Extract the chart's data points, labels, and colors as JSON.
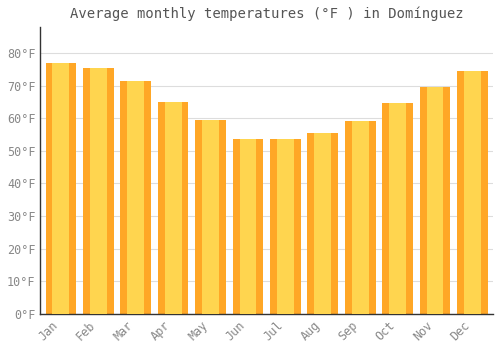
{
  "title": "Average monthly temperatures (°F ) in Domínguez",
  "months": [
    "Jan",
    "Feb",
    "Mar",
    "Apr",
    "May",
    "Jun",
    "Jul",
    "Aug",
    "Sep",
    "Oct",
    "Nov",
    "Dec"
  ],
  "values": [
    77,
    75.5,
    71.5,
    65,
    59.5,
    53.5,
    53.5,
    55.5,
    59,
    64.5,
    69.5,
    74.5
  ],
  "bar_color_center": "#FFD54F",
  "bar_color_edge": "#FFA726",
  "background_color": "#FFFFFF",
  "plot_bg_color": "#FFFFFF",
  "grid_color": "#DDDDDD",
  "text_color": "#888888",
  "title_color": "#555555",
  "yticks": [
    0,
    10,
    20,
    30,
    40,
    50,
    60,
    70,
    80
  ],
  "ylim": [
    0,
    88
  ],
  "title_fontsize": 10,
  "tick_fontsize": 8.5,
  "bar_width": 0.82
}
